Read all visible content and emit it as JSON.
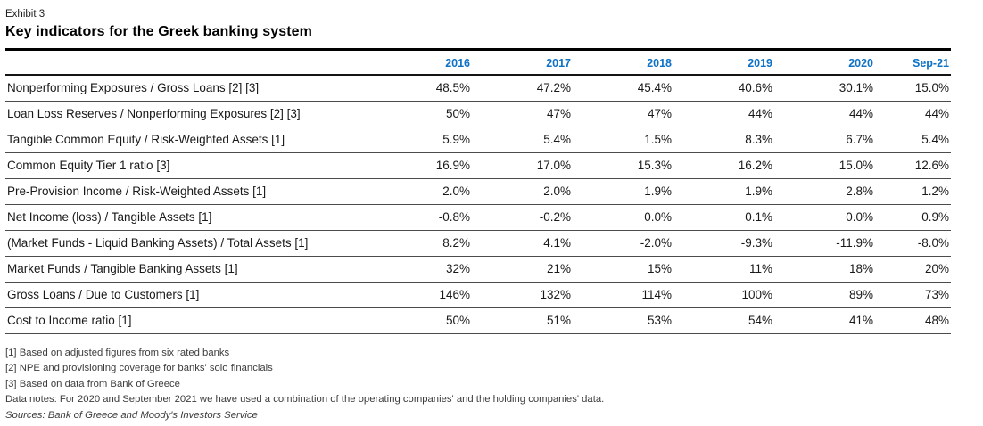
{
  "exhibit": {
    "label": "Exhibit 3",
    "title": "Key indicators for the Greek banking system"
  },
  "colors": {
    "year_header_blue": "#0e72c6",
    "rule_black": "#000000",
    "row_rule_gray": "#4c4c4e"
  },
  "chart_data": {
    "type": "table",
    "title": "Key indicators for the Greek banking system",
    "columns": [
      "2016",
      "2017",
      "2018",
      "2019",
      "2020",
      "Sep-21"
    ],
    "rows": [
      {
        "label": "Nonperforming Exposures / Gross Loans [2] [3]",
        "values": [
          "48.5%",
          "47.2%",
          "45.4%",
          "40.6%",
          "30.1%",
          "15.0%"
        ]
      },
      {
        "label": "Loan Loss Reserves / Nonperforming Exposures [2] [3]",
        "values": [
          "50%",
          "47%",
          "47%",
          "44%",
          "44%",
          "44%"
        ]
      },
      {
        "label": "Tangible Common Equity / Risk-Weighted Assets [1]",
        "values": [
          "5.9%",
          "5.4%",
          "1.5%",
          "8.3%",
          "6.7%",
          "5.4%"
        ]
      },
      {
        "label": "Common Equity Tier 1 ratio [3]",
        "values": [
          "16.9%",
          "17.0%",
          "15.3%",
          "16.2%",
          "15.0%",
          "12.6%"
        ]
      },
      {
        "label": "Pre-Provision Income / Risk-Weighted Assets [1]",
        "values": [
          "2.0%",
          "2.0%",
          "1.9%",
          "1.9%",
          "2.8%",
          "1.2%"
        ]
      },
      {
        "label": "Net Income (loss) / Tangible Assets [1]",
        "values": [
          "-0.8%",
          "-0.2%",
          "0.0%",
          "0.1%",
          "0.0%",
          "0.9%"
        ]
      },
      {
        "label": "(Market Funds - Liquid Banking Assets) / Total Assets [1]",
        "values": [
          "8.2%",
          "4.1%",
          "-2.0%",
          "-9.3%",
          "-11.9%",
          "-8.0%"
        ]
      },
      {
        "label": "Market Funds / Tangible Banking Assets [1]",
        "values": [
          "32%",
          "21%",
          "15%",
          "11%",
          "18%",
          "20%"
        ]
      },
      {
        "label": "Gross Loans / Due to Customers [1]",
        "values": [
          "146%",
          "132%",
          "114%",
          "100%",
          "89%",
          "73%"
        ]
      },
      {
        "label": "Cost to Income ratio [1]",
        "values": [
          "50%",
          "51%",
          "53%",
          "54%",
          "41%",
          "48%"
        ]
      }
    ]
  },
  "footnotes": [
    {
      "text": "[1] Based on adjusted figures from six rated banks",
      "style": "normal"
    },
    {
      "text": "[2] NPE and provisioning coverage for banks' solo financials",
      "style": "normal"
    },
    {
      "text": "[3] Based on data from Bank of Greece",
      "style": "normal"
    },
    {
      "text": "Data notes: For 2020 and September 2021 we have used a combination of the operating companies' and the holding companies' data.",
      "style": "normal"
    },
    {
      "text": "Sources: Bank of Greece and Moody's Investors Service",
      "style": "italic"
    }
  ]
}
